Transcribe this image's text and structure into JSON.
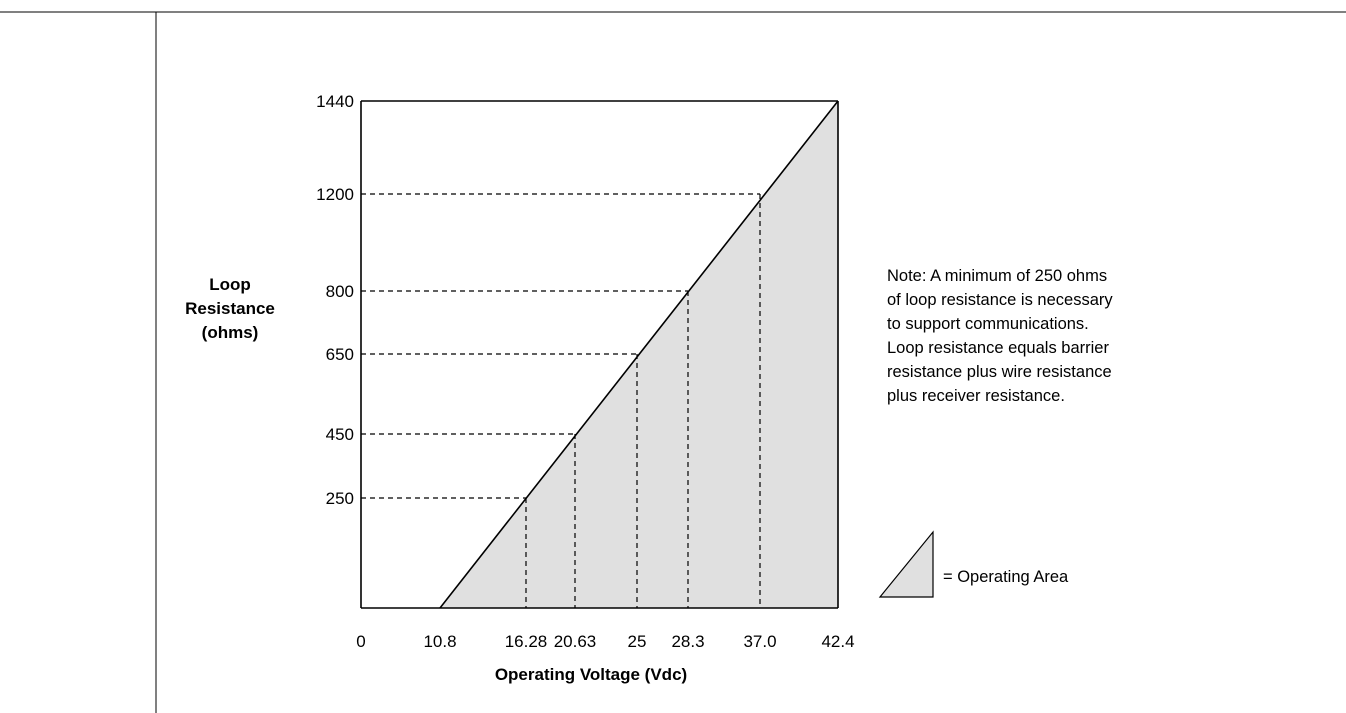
{
  "chart_data": {
    "type": "area",
    "xlabel": "Operating Voltage (Vdc)",
    "ylabel": [
      "Loop",
      "Resistance",
      "(ohms)"
    ],
    "x_ticks": [
      "0",
      "10.8",
      "16.28",
      "20.63",
      "25",
      "28.3",
      "37.0",
      "42.4"
    ],
    "y_ticks": [
      "250",
      "450",
      "650",
      "800",
      "1200",
      "1440"
    ],
    "boundary_line": [
      {
        "x": 10.8,
        "y": 0
      },
      {
        "x": 42.4,
        "y": 1440
      }
    ],
    "reference_points": [
      {
        "x": 16.28,
        "y": 250
      },
      {
        "x": 20.63,
        "y": 450
      },
      {
        "x": 25,
        "y": 650
      },
      {
        "x": 28.3,
        "y": 800
      },
      {
        "x": 37.0,
        "y": 1200
      }
    ],
    "grid": false,
    "fill_color": "#e0e0e0",
    "legend": {
      "label": "= Operating Area",
      "placement": "right"
    }
  },
  "note": {
    "lines": [
      "Note: A minimum of 250 ohms",
      "of loop resistance is necessary",
      "to support communications.",
      "Loop resistance equals barrier",
      "resistance plus wire resistance",
      "plus receiver resistance."
    ]
  }
}
